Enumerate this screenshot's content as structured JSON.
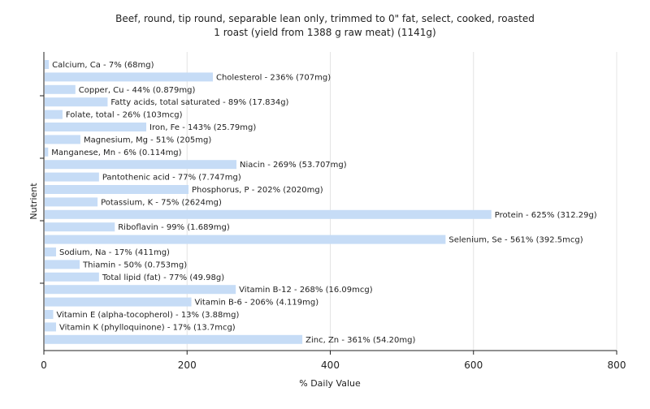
{
  "chart_data": {
    "type": "bar",
    "orientation": "horizontal",
    "title_lines": [
      "Beef, round, tip round, separable lean only, trimmed to 0\" fat, select, cooked, roasted",
      "1 roast (yield from 1388 g raw meat) (1141g)"
    ],
    "xlabel": "% Daily Value",
    "ylabel": "Nutrient",
    "xlim": [
      0,
      800
    ],
    "xticks": [
      0,
      200,
      400,
      600,
      800
    ],
    "grid": true,
    "bar_color": "#c6dcf6",
    "bars": [
      {
        "name": "Calcium, Ca",
        "value": 7,
        "label": "Calcium, Ca - 7% (68mg)"
      },
      {
        "name": "Cholesterol",
        "value": 236,
        "label": "Cholesterol - 236% (707mg)"
      },
      {
        "name": "Copper, Cu",
        "value": 44,
        "label": "Copper, Cu - 44% (0.879mg)"
      },
      {
        "name": "Fatty acids, total saturated",
        "value": 89,
        "label": "Fatty acids, total saturated - 89% (17.834g)"
      },
      {
        "name": "Folate, total",
        "value": 26,
        "label": "Folate, total - 26% (103mcg)"
      },
      {
        "name": "Iron, Fe",
        "value": 143,
        "label": "Iron, Fe - 143% (25.79mg)"
      },
      {
        "name": "Magnesium, Mg",
        "value": 51,
        "label": "Magnesium, Mg - 51% (205mg)"
      },
      {
        "name": "Manganese, Mn",
        "value": 6,
        "label": "Manganese, Mn - 6% (0.114mg)"
      },
      {
        "name": "Niacin",
        "value": 269,
        "label": "Niacin - 269% (53.707mg)"
      },
      {
        "name": "Pantothenic acid",
        "value": 77,
        "label": "Pantothenic acid - 77% (7.747mg)"
      },
      {
        "name": "Phosphorus, P",
        "value": 202,
        "label": "Phosphorus, P - 202% (2020mg)"
      },
      {
        "name": "Potassium, K",
        "value": 75,
        "label": "Potassium, K - 75% (2624mg)"
      },
      {
        "name": "Protein",
        "value": 625,
        "label": "Protein - 625% (312.29g)"
      },
      {
        "name": "Riboflavin",
        "value": 99,
        "label": "Riboflavin - 99% (1.689mg)"
      },
      {
        "name": "Selenium, Se",
        "value": 561,
        "label": "Selenium, Se - 561% (392.5mcg)"
      },
      {
        "name": "Sodium, Na",
        "value": 17,
        "label": "Sodium, Na - 17% (411mg)"
      },
      {
        "name": "Thiamin",
        "value": 50,
        "label": "Thiamin - 50% (0.753mg)"
      },
      {
        "name": "Total lipid (fat)",
        "value": 77,
        "label": "Total lipid (fat) - 77% (49.98g)"
      },
      {
        "name": "Vitamin B-12",
        "value": 268,
        "label": "Vitamin B-12 - 268% (16.09mcg)"
      },
      {
        "name": "Vitamin B-6",
        "value": 206,
        "label": "Vitamin B-6 - 206% (4.119mg)"
      },
      {
        "name": "Vitamin E (alpha-tocopherol)",
        "value": 13,
        "label": "Vitamin E (alpha-tocopherol) - 13% (3.88mg)"
      },
      {
        "name": "Vitamin K (phylloquinone)",
        "value": 17,
        "label": "Vitamin K (phylloquinone) - 17% (13.7mcg)"
      },
      {
        "name": "Zinc, Zn",
        "value": 361,
        "label": "Zinc, Zn - 361% (54.20mg)"
      }
    ]
  }
}
